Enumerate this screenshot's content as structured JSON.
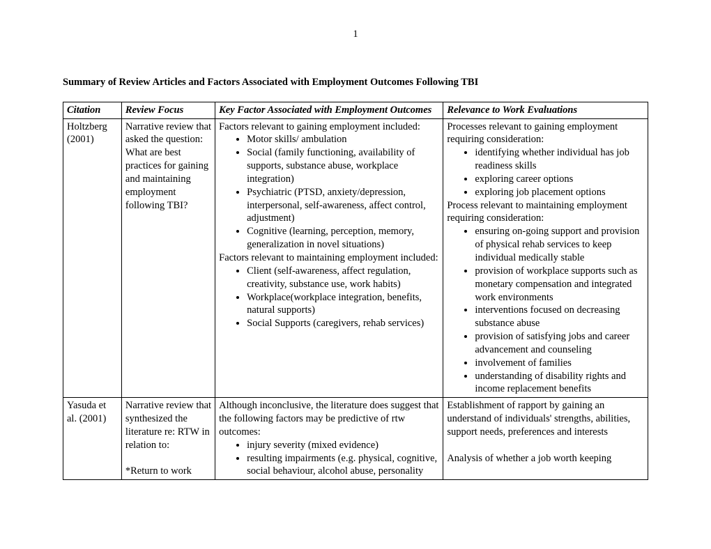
{
  "page_number": "1",
  "title": "Summary of Review Articles and Factors Associated with Employment Outcomes Following TBI",
  "headers": {
    "citation": "Citation",
    "review_focus": "Review Focus",
    "key_factor": "Key Factor Associated with Employment Outcomes",
    "relevance": "Relevance to Work Evaluations"
  },
  "rows": [
    {
      "citation": "Holtzberg (2001)",
      "review_focus": "Narrative review that asked the question: What are best practices for gaining and maintaining employment following TBI?",
      "key_factor": {
        "intro1": "Factors relevant to gaining employment included:",
        "list1": [
          "Motor skills/ ambulation",
          "Social (family functioning, availability of supports, substance abuse, workplace integration)",
          "Psychiatric (PTSD, anxiety/depression, interpersonal, self-awareness, affect control, adjustment)",
          "Cognitive (learning, perception, memory, generalization in novel situations)"
        ],
        "intro2": "Factors relevant to maintaining employment included:",
        "list2": [
          "Client (self-awareness, affect regulation, creativity, substance use, work habits)",
          "Workplace(workplace integration, benefits, natural supports)",
          "Social Supports (caregivers, rehab services)"
        ]
      },
      "relevance": {
        "intro1": "Processes relevant to gaining employment requiring consideration:",
        "list1": [
          "identifying whether individual has job readiness skills",
          "exploring career options",
          "exploring job placement options"
        ],
        "intro2": "Process relevant to maintaining employment requiring consideration:",
        "list2": [
          "ensuring on-going support and provision of physical rehab services to keep individual medically stable",
          "provision of workplace supports such as monetary compensation and integrated work environments",
          "interventions focused on decreasing substance abuse",
          "provision of satisfying jobs and career advancement and counseling",
          "involvement of families",
          "understanding of disability rights and income replacement benefits"
        ]
      }
    },
    {
      "citation": "Yasuda et al. (2001)",
      "review_focus": {
        "para1": "Narrative review that synthesized the literature re: RTW in relation to:",
        "para2": "*Return to work"
      },
      "key_factor": {
        "intro1": "Although inconclusive, the literature does suggest that the following factors may be predictive of rtw outcomes:",
        "list1": [
          "injury severity (mixed evidence)",
          "resulting impairments (e.g. physical, cognitive, social behaviour, alcohol abuse, personality"
        ]
      },
      "relevance": {
        "para1": "Establishment of rapport by gaining an understand of individuals' strengths, abilities, support needs, preferences and interests",
        "para2": "Analysis of whether a job worth keeping"
      }
    }
  ]
}
